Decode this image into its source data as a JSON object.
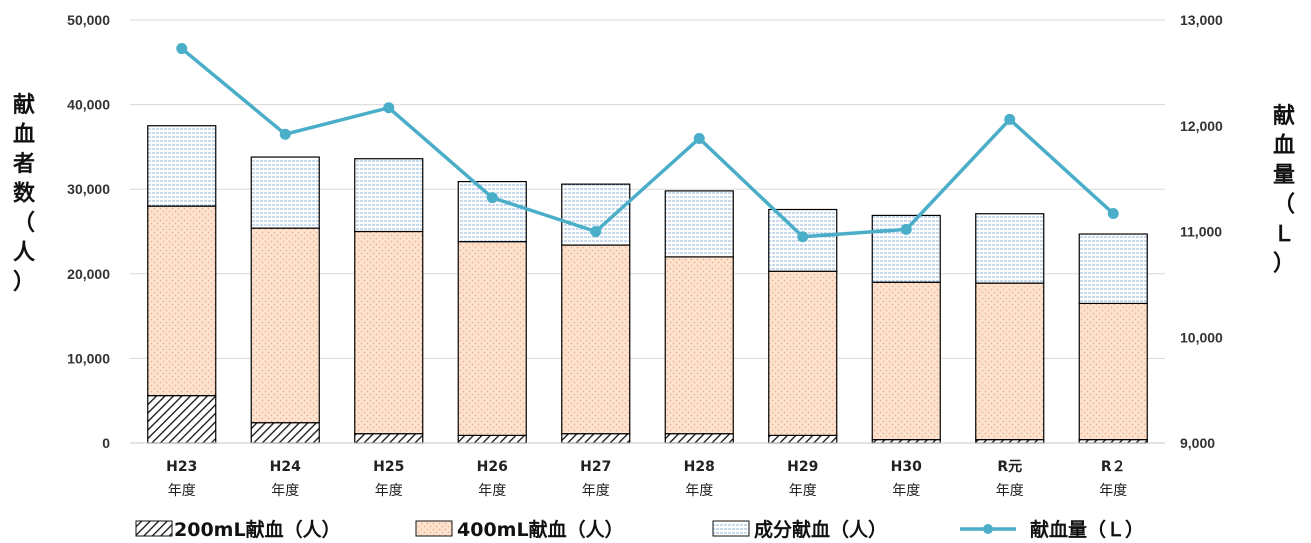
{
  "chart_data": {
    "type": "bar",
    "categories": [
      [
        "H23",
        "年度"
      ],
      [
        "H24",
        "年度"
      ],
      [
        "H25",
        "年度"
      ],
      [
        "H26",
        "年度"
      ],
      [
        "H27",
        "年度"
      ],
      [
        "H28",
        "年度"
      ],
      [
        "H29",
        "年度"
      ],
      [
        "H30",
        "年度"
      ],
      [
        "R元",
        "年度"
      ],
      [
        "R２",
        "年度"
      ]
    ],
    "y_left": {
      "label_chars": [
        "献",
        "血",
        "者",
        "数",
        "（",
        "人",
        "）"
      ],
      "ylim": [
        0,
        50000
      ],
      "ticks": [
        "0",
        "10,000",
        "20,000",
        "30,000",
        "40,000",
        "50,000"
      ],
      "tick_values": [
        0,
        10000,
        20000,
        30000,
        40000,
        50000
      ]
    },
    "y_right": {
      "label_chars": [
        "献",
        "血",
        "量",
        "（",
        "Ｌ",
        "）"
      ],
      "ylim": [
        9000,
        13000
      ],
      "ticks": [
        "9,000",
        "10,000",
        "11,000",
        "12,000",
        "13,000"
      ],
      "tick_values": [
        9000,
        10000,
        11000,
        12000,
        13000
      ]
    },
    "series": [
      {
        "name": "200mL献血（人）",
        "kind": "stacked-bar",
        "pattern": "diagonal-hatch",
        "color": "#111111",
        "values": [
          5600,
          2400,
          1100,
          900,
          1100,
          1100,
          900,
          400,
          400,
          400
        ]
      },
      {
        "name": "400mL献血（人）",
        "kind": "stacked-bar",
        "pattern": "peach-dots",
        "color": "#f9d3b5",
        "values": [
          22400,
          23000,
          23900,
          22900,
          22300,
          20900,
          19400,
          18600,
          18500,
          16100
        ]
      },
      {
        "name": "成分献血（人）",
        "kind": "stacked-bar",
        "pattern": "blue-stripes",
        "color": "#9dbfe0",
        "values": [
          9500,
          8400,
          8600,
          7100,
          7200,
          7800,
          7300,
          7900,
          8200,
          8200
        ]
      },
      {
        "name": "献血量（Ｌ）",
        "kind": "line",
        "axis": "right",
        "color": "#4aaec8",
        "values": [
          12730,
          11920,
          12170,
          11320,
          11000,
          11880,
          10950,
          11020,
          12060,
          11170
        ]
      }
    ],
    "grid": "y-major",
    "legend_position": "bottom"
  }
}
